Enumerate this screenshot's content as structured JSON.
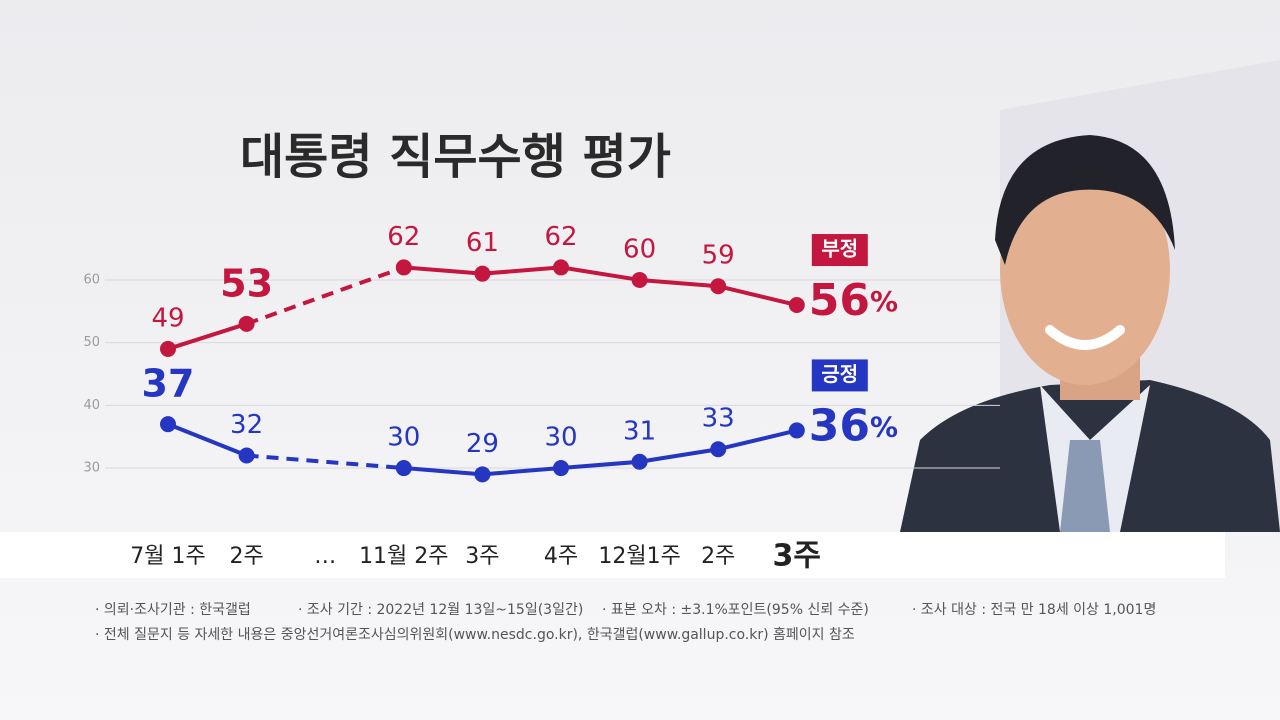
{
  "chart_data": {
    "type": "line",
    "title": "대통령 직무수행 평가",
    "categories": [
      "7월 1주",
      "2주",
      "…",
      "11월 2주",
      "3주",
      "4주",
      "12월1주",
      "2주",
      "3주"
    ],
    "series": [
      {
        "name": "부정",
        "color": "#c4173f",
        "values": [
          49,
          53,
          null,
          62,
          61,
          62,
          60,
          59,
          56
        ],
        "value_labels": [
          "49",
          "53",
          null,
          "62",
          "61",
          "62",
          "60",
          "59",
          "56%"
        ]
      },
      {
        "name": "긍정",
        "color": "#2436c2",
        "values": [
          37,
          32,
          null,
          30,
          29,
          30,
          31,
          33,
          36
        ],
        "value_labels": [
          "37",
          "32",
          null,
          "30",
          "29",
          "30",
          "31",
          "33",
          "36%"
        ]
      }
    ],
    "ylim": [
      25,
      65
    ],
    "yticks": [
      30,
      40,
      50,
      60
    ],
    "grid": true,
    "notes": [
      [
        "· 의뢰·조사기관 : 한국갤럽",
        "· 조사 기간 : 2022년 12월 13일~15일(3일간)",
        "· 표본 오차 : ±3.1%포인트(95% 신뢰 수준)",
        "· 조사 대상 : 전국 만 18세 이상 1,001명"
      ],
      [
        "· 전체 질문지 등 자세한 내용은 중앙선거여론조사심의위원회(www.nesdc.go.kr), 한국갤럽(www.gallup.co.kr) 홈페이지 참조"
      ]
    ]
  }
}
